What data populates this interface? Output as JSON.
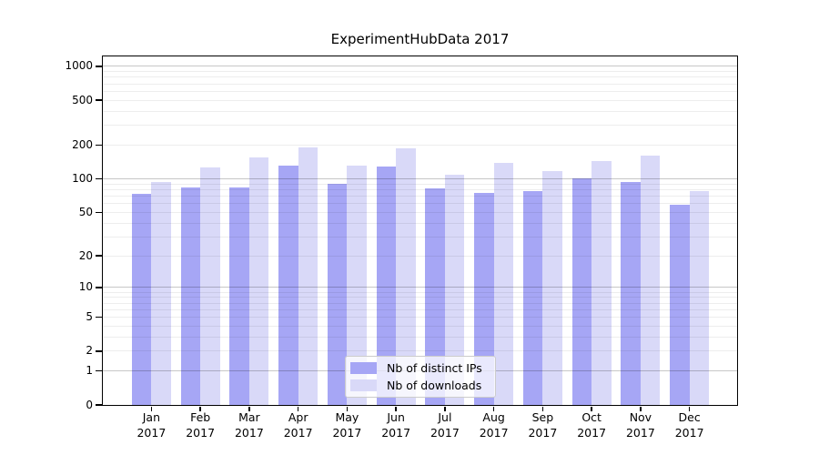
{
  "title": "ExperimentHubData 2017",
  "chart_data": {
    "type": "bar",
    "title": "ExperimentHubData 2017",
    "scale": "log1p",
    "categories": [
      "Jan",
      "Feb",
      "Mar",
      "Apr",
      "May",
      "Jun",
      "Jul",
      "Aug",
      "Sep",
      "Oct",
      "Nov",
      "Dec"
    ],
    "year": "2017",
    "series": [
      {
        "name": "Nb of distinct IPs",
        "color": "#a6a6f5",
        "values": [
          73,
          84,
          83,
          131,
          91,
          128,
          82,
          75,
          78,
          101,
          93,
          58
        ]
      },
      {
        "name": "Nb of downloads",
        "color": "#d9d9f8",
        "values": [
          93,
          126,
          155,
          190,
          131,
          187,
          108,
          138,
          117,
          145,
          162,
          78
        ]
      }
    ],
    "yticks": [
      0,
      1,
      2,
      5,
      10,
      20,
      50,
      100,
      200,
      500,
      1000
    ],
    "ylim": [
      0,
      1200
    ],
    "grid": "on",
    "legend_position": "bottom-center"
  },
  "colors": {
    "background": "#ffffff",
    "axis": "#000000",
    "grid_major": "rgba(0,0,0,0.22)",
    "grid_minor": "rgba(0,0,0,0.07)",
    "legend_bg": "rgba(255,255,255,0.75)",
    "legend_border": "#cccccc",
    "text": "#000000"
  }
}
